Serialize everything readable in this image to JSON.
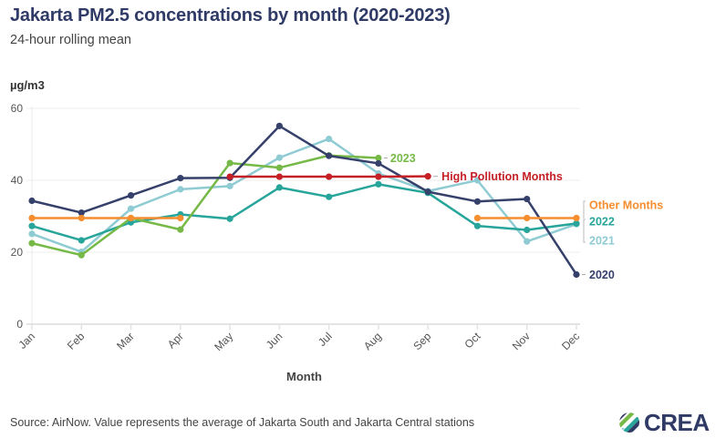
{
  "header": {
    "title": "Jakarta PM2.5 concentrations by month (2020-2023)",
    "subtitle": "24-hour rolling mean",
    "unit_label": "µg/m3"
  },
  "footer": {
    "source": "Source: AirNow. Value represents the average of Jakarta South and Jakarta Central stations",
    "logo_text": "CREA",
    "logo_icon": "crea-logo-icon"
  },
  "chart_data": {
    "type": "line",
    "title": "Jakarta PM2.5 concentrations by month (2020-2023)",
    "subtitle": "24-hour rolling mean",
    "xlabel": "Month",
    "ylabel": "µg/m3",
    "categories": [
      "Jan",
      "Feb",
      "Mar",
      "Apr",
      "May",
      "Jun",
      "Jul",
      "Aug",
      "Sep",
      "Oct",
      "Nov",
      "Dec"
    ],
    "ylim": [
      0,
      60
    ],
    "yticks": [
      0,
      20,
      40,
      60
    ],
    "grid": true,
    "legend": "direct-labels-right",
    "series": [
      {
        "name": "2021",
        "label": "2021",
        "color": "#8fcbd3",
        "values": [
          25.1,
          20.1,
          32.1,
          37.5,
          38.4,
          46.3,
          51.5,
          41.9,
          37.0,
          40.0,
          23.0,
          27.8
        ]
      },
      {
        "name": "2022",
        "label": "2022",
        "color": "#27a59a",
        "values": [
          27.3,
          23.3,
          28.3,
          30.5,
          29.3,
          38.0,
          35.4,
          38.9,
          36.5,
          27.3,
          26.2,
          28.0
        ]
      },
      {
        "name": "2023",
        "label": "2023",
        "color": "#76b947",
        "values": [
          22.5,
          19.2,
          29.5,
          26.3,
          44.8,
          43.5,
          46.9,
          46.2,
          null,
          null,
          null,
          null
        ]
      },
      {
        "name": "2020",
        "label": "2020",
        "color": "#35406b",
        "values": [
          34.3,
          31.0,
          35.8,
          40.6,
          40.7,
          55.1,
          46.8,
          44.7,
          36.8,
          34.1,
          34.8,
          13.8
        ]
      },
      {
        "name": "Other Months",
        "label": "Other Months",
        "color": "#f68d2e",
        "values": [
          29.5,
          29.5,
          29.5,
          29.5,
          null,
          null,
          null,
          null,
          null,
          29.5,
          29.5,
          29.5
        ],
        "segments": [
          [
            0,
            3
          ],
          [
            9,
            11
          ]
        ]
      },
      {
        "name": "High Pollution Months",
        "label": "High Pollution Months",
        "color": "#c42026",
        "values": [
          null,
          null,
          null,
          null,
          41.0,
          41.0,
          41.0,
          41.0,
          41.1,
          null,
          null,
          null
        ]
      }
    ]
  }
}
